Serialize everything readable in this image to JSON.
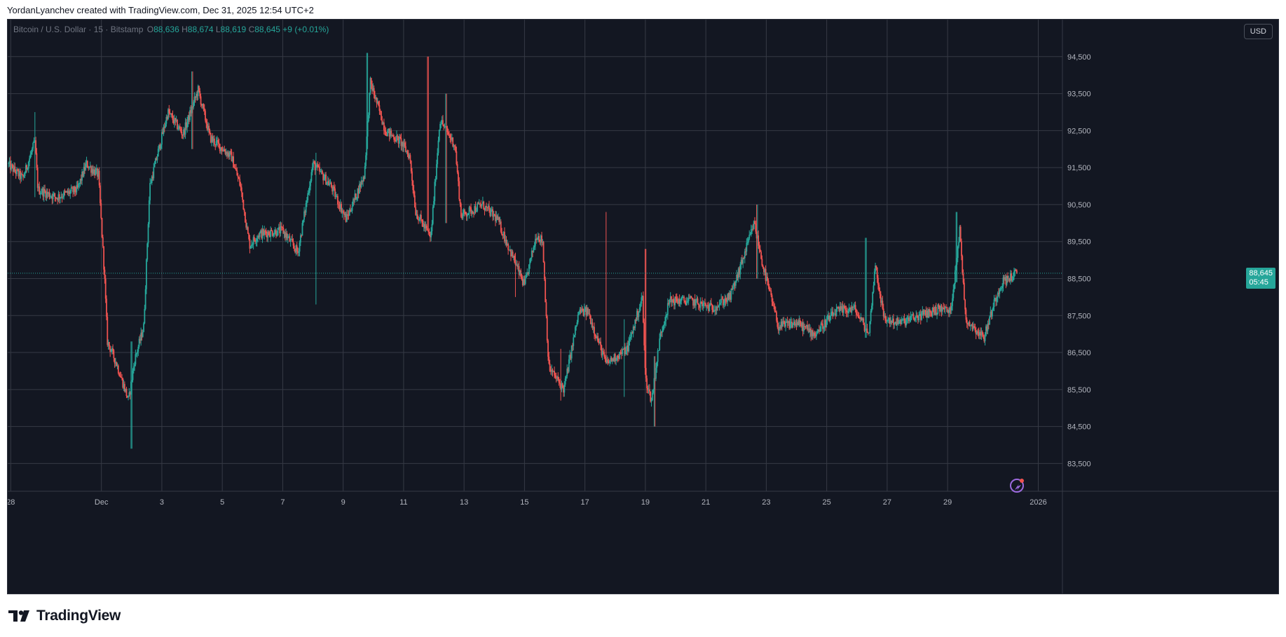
{
  "attribution": "YordanLyanchev created with TradingView.com, Dec 31, 2025 12:54 UTC+2",
  "legend": {
    "symbol": "Bitcoin / U.S. Dollar · 15 · Bitstamp",
    "o_label": "O",
    "o_value": "88,636",
    "h_label": "H",
    "h_value": "88,674",
    "l_label": "L",
    "l_value": "88,619",
    "c_label": "C",
    "c_value": "88,645",
    "change": "+9 (+0.01%)"
  },
  "currency_button": "USD",
  "last_price": {
    "price": "88,645",
    "countdown": "05:45"
  },
  "brand": "TradingView",
  "colors": {
    "background": "#131722",
    "grid": "#363a45",
    "up": "#26a69a",
    "down": "#ef5350",
    "axis_text": "#b2b5be"
  },
  "chart_data": {
    "type": "candlestick",
    "symbol": "BTCUSD",
    "interval_minutes": 15,
    "x_ticks": [
      "28",
      "Dec",
      "3",
      "5",
      "7",
      "9",
      "11",
      "13",
      "15",
      "17",
      "19",
      "21",
      "23",
      "25",
      "27",
      "29",
      "2026"
    ],
    "x_tick_days": [
      -3,
      0,
      2,
      4,
      6,
      8,
      10,
      12,
      14,
      16,
      18,
      20,
      22,
      24,
      26,
      28,
      31
    ],
    "y_ticks": [
      "83,500",
      "84,500",
      "85,500",
      "86,500",
      "87,500",
      "88,500",
      "89,500",
      "90,500",
      "91,500",
      "92,500",
      "93,500",
      "94,500"
    ],
    "y_tick_values": [
      83500,
      84500,
      85500,
      86500,
      87500,
      88500,
      89500,
      90500,
      91500,
      92500,
      93500,
      94500
    ],
    "ylim": [
      82750,
      95500
    ],
    "xlim_days": [
      -3.1,
      31.8
    ],
    "last_price": 88645,
    "price_path": [
      [
        -3.1,
        91600
      ],
      [
        -2.6,
        91200
      ],
      [
        -2.2,
        92200
      ],
      [
        -2.1,
        90900
      ],
      [
        -1.5,
        90700
      ],
      [
        -0.8,
        90900
      ],
      [
        -0.5,
        91600
      ],
      [
        -0.1,
        91300
      ],
      [
        0.1,
        88600
      ],
      [
        0.2,
        86800
      ],
      [
        0.5,
        86200
      ],
      [
        0.9,
        85200
      ],
      [
        1.1,
        86300
      ],
      [
        1.4,
        87200
      ],
      [
        1.6,
        91000
      ],
      [
        2.2,
        93000
      ],
      [
        2.7,
        92400
      ],
      [
        3.2,
        93600
      ],
      [
        3.6,
        92300
      ],
      [
        4.3,
        91800
      ],
      [
        4.6,
        91000
      ],
      [
        4.9,
        89400
      ],
      [
        5.2,
        89700
      ],
      [
        6.0,
        89800
      ],
      [
        6.5,
        89200
      ],
      [
        7.0,
        91600
      ],
      [
        7.6,
        91000
      ],
      [
        8.1,
        90100
      ],
      [
        8.7,
        91300
      ],
      [
        8.9,
        93800
      ],
      [
        9.4,
        92500
      ],
      [
        9.9,
        92200
      ],
      [
        10.2,
        91800
      ],
      [
        10.4,
        90300
      ],
      [
        10.9,
        89600
      ],
      [
        11.2,
        92800
      ],
      [
        11.7,
        92100
      ],
      [
        11.9,
        90200
      ],
      [
        12.6,
        90500
      ],
      [
        13.1,
        90100
      ],
      [
        14.0,
        88300
      ],
      [
        14.4,
        89700
      ],
      [
        14.6,
        89500
      ],
      [
        14.8,
        86100
      ],
      [
        15.3,
        85500
      ],
      [
        15.8,
        87600
      ],
      [
        16.1,
        87600
      ],
      [
        16.7,
        86200
      ],
      [
        17.4,
        86600
      ],
      [
        17.9,
        88000
      ],
      [
        18.0,
        85800
      ],
      [
        18.2,
        85200
      ],
      [
        18.5,
        87000
      ],
      [
        18.8,
        87900
      ],
      [
        19.5,
        87900
      ],
      [
        20.2,
        87700
      ],
      [
        20.8,
        88000
      ],
      [
        21.1,
        88700
      ],
      [
        21.6,
        90000
      ],
      [
        21.9,
        88800
      ],
      [
        22.4,
        87200
      ],
      [
        23.0,
        87300
      ],
      [
        23.6,
        87000
      ],
      [
        24.3,
        87600
      ],
      [
        24.9,
        87700
      ],
      [
        25.4,
        87000
      ],
      [
        25.6,
        88900
      ],
      [
        25.9,
        87400
      ],
      [
        26.4,
        87300
      ],
      [
        27.1,
        87500
      ],
      [
        27.8,
        87700
      ],
      [
        28.1,
        87600
      ],
      [
        28.4,
        89800
      ],
      [
        28.6,
        87400
      ],
      [
        29.2,
        86900
      ],
      [
        29.6,
        88000
      ],
      [
        29.8,
        88400
      ],
      [
        30.3,
        88645
      ]
    ],
    "extremes": [
      [
        -2.2,
        93000,
        90700
      ],
      [
        1.0,
        86800,
        83900
      ],
      [
        3.0,
        94100,
        92000
      ],
      [
        7.1,
        91900,
        87800
      ],
      [
        8.8,
        94600,
        92000
      ],
      [
        10.8,
        94500,
        91200
      ],
      [
        11.4,
        93500,
        90000
      ],
      [
        13.7,
        89200,
        88000
      ],
      [
        15.2,
        86600,
        85200
      ],
      [
        16.7,
        90300,
        86400
      ],
      [
        17.3,
        87400,
        85300
      ],
      [
        18.0,
        89300,
        85900
      ],
      [
        18.3,
        86400,
        84500
      ],
      [
        21.7,
        90500,
        88500
      ],
      [
        25.3,
        89600,
        86900
      ],
      [
        28.3,
        90300,
        88400
      ]
    ]
  }
}
